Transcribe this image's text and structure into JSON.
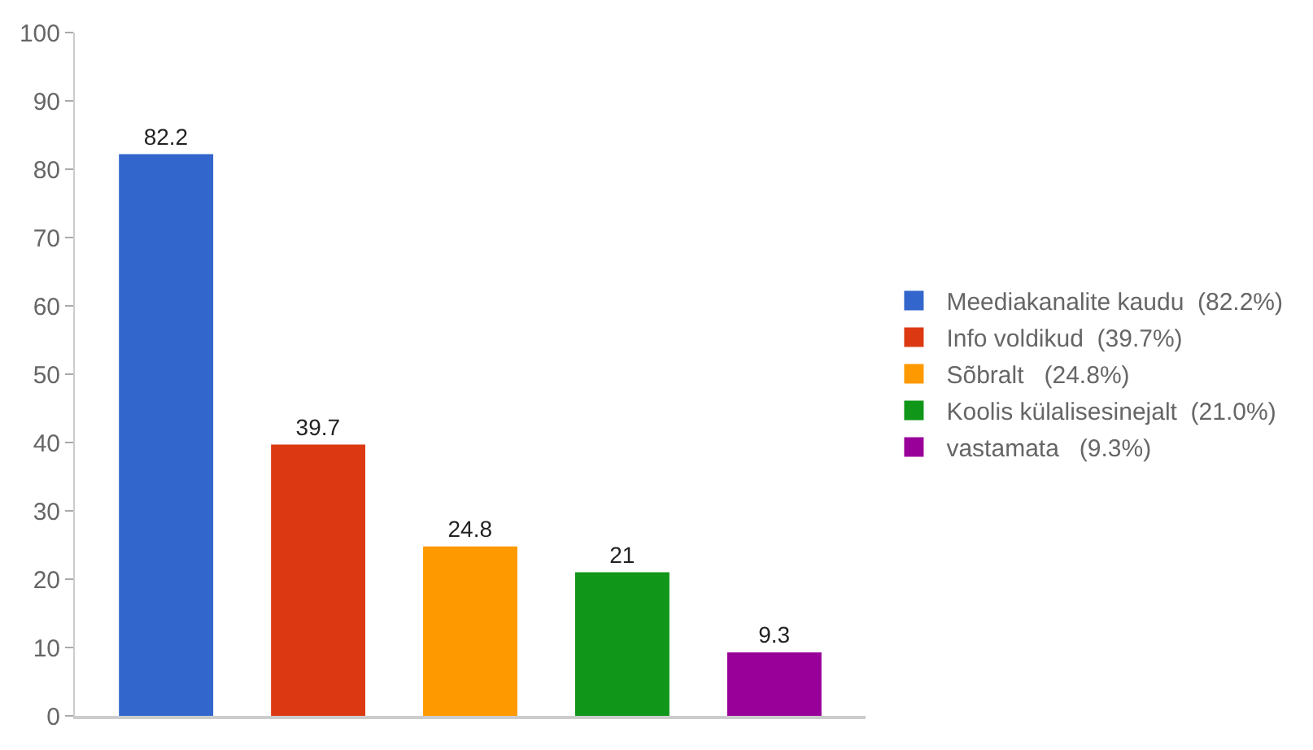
{
  "chart_data": {
    "type": "bar",
    "categories": [
      null,
      null,
      null,
      null,
      null
    ],
    "series": [
      {
        "name": "Meediakanalite kaudu  (82.2%)",
        "color": "#3366cc",
        "values": [
          82.2,
          null,
          null,
          null,
          null
        ]
      },
      {
        "name": "Info voldikud  (39.7%)",
        "color": "#dc3912",
        "values": [
          null,
          39.7,
          null,
          null,
          null
        ]
      },
      {
        "name": "Sõbralt   (24.8%)",
        "color": "#ff9900",
        "values": [
          null,
          null,
          24.8,
          null,
          null
        ]
      },
      {
        "name": "Koolis külalisesinejalt  (21.0%)",
        "color": "#109618",
        "values": [
          null,
          null,
          null,
          21,
          null
        ]
      },
      {
        "name": "vastamata   (9.3%)",
        "color": "#990099",
        "values": [
          null,
          null,
          null,
          null,
          9.3
        ]
      }
    ],
    "ylim": [
      0,
      100
    ],
    "yticks": [
      0,
      10,
      20,
      30,
      40,
      50,
      60,
      70,
      80,
      90,
      100
    ],
    "data_labels": true,
    "legend": "right"
  }
}
